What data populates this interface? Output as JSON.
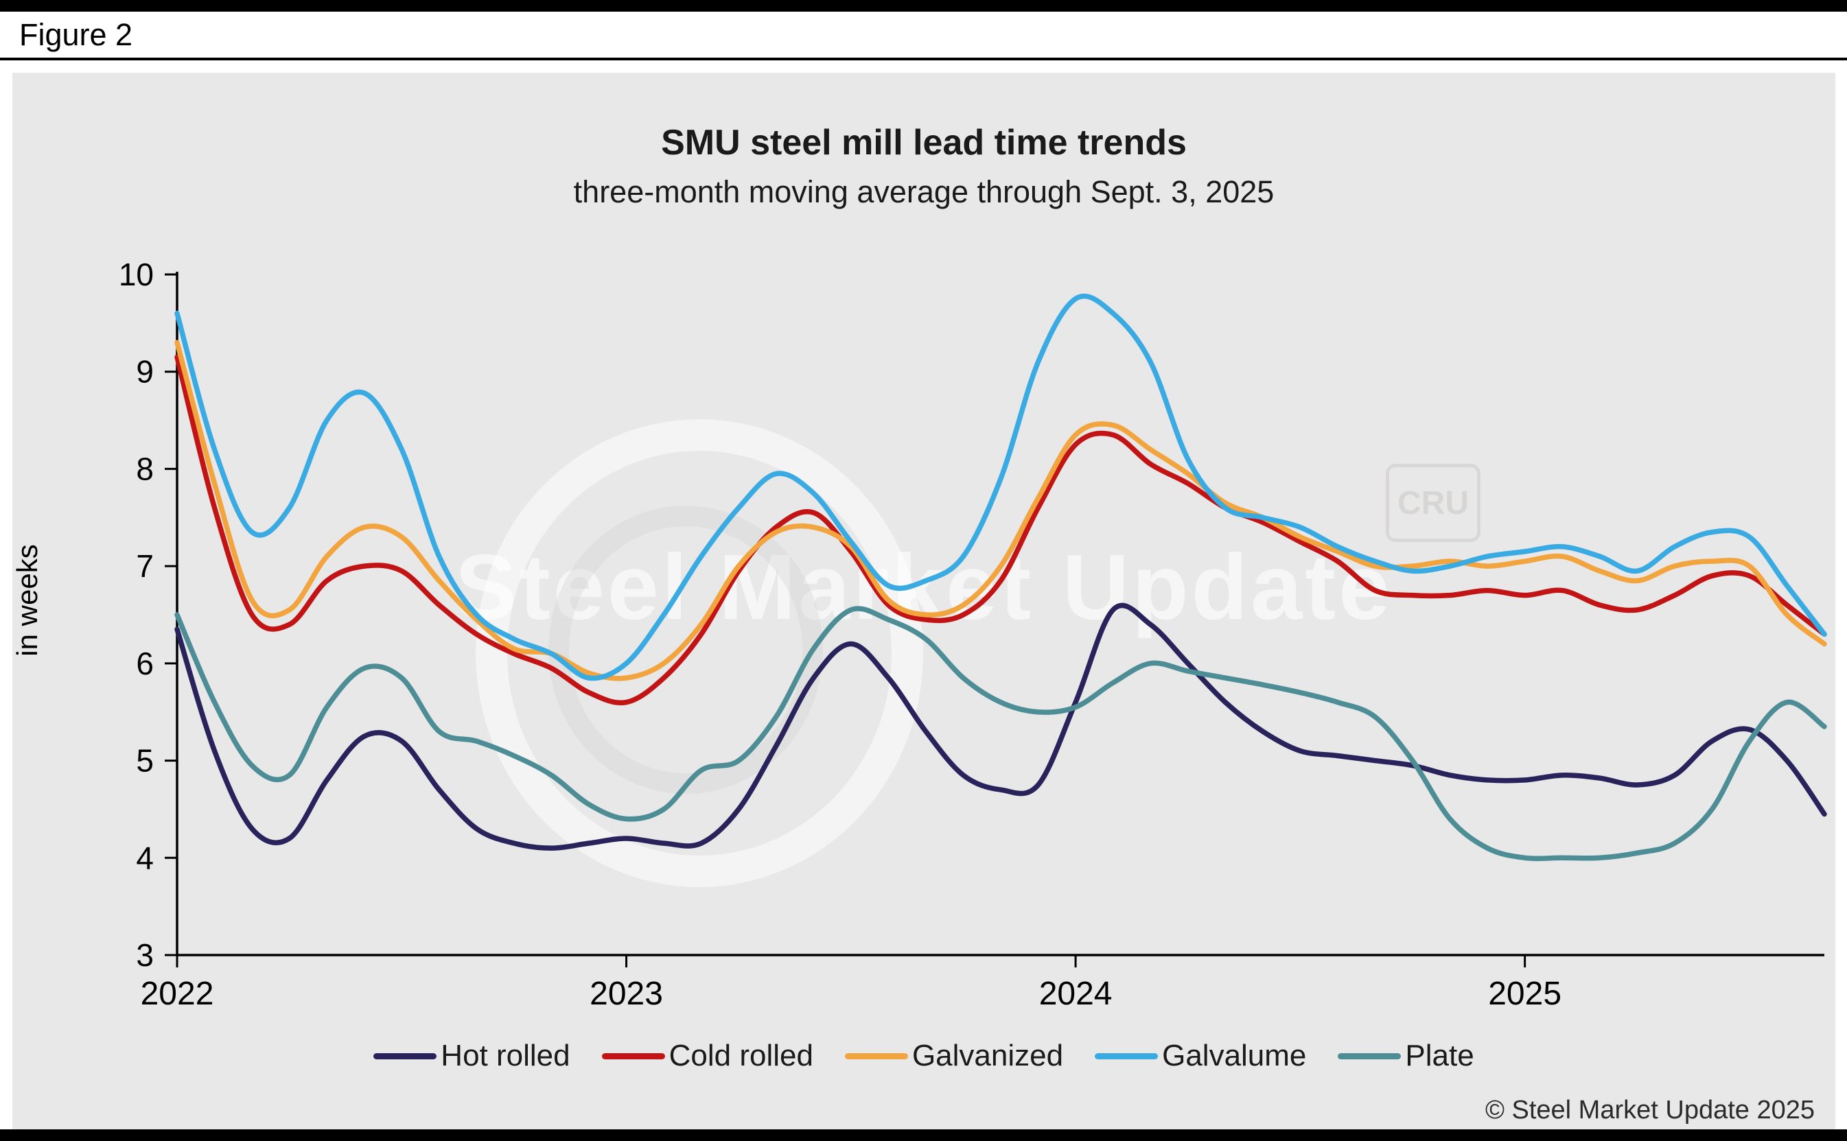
{
  "figure_label": "Figure 2",
  "chart_data": {
    "type": "line",
    "title": "SMU steel mill lead time trends",
    "subtitle": "three-month moving average through Sept. 3, 2025",
    "ylabel": "in weeks",
    "ylim": [
      3,
      10
    ],
    "yticks": [
      3,
      4,
      5,
      6,
      7,
      8,
      9,
      10
    ],
    "x_unit": "months since Jan 2022",
    "xtick_positions": [
      0,
      12,
      24,
      36
    ],
    "xtick_labels": [
      "2022",
      "2023",
      "2024",
      "2025"
    ],
    "legend_position": "bottom",
    "grid": false,
    "series": [
      {
        "name": "Hot rolled",
        "color": "#29235c",
        "z": 1,
        "values": [
          6.35,
          5.1,
          4.3,
          4.2,
          4.8,
          5.25,
          5.2,
          4.7,
          4.3,
          4.15,
          4.1,
          4.15,
          4.2,
          4.15,
          4.15,
          4.5,
          5.15,
          5.85,
          6.2,
          5.85,
          5.3,
          4.85,
          4.7,
          4.75,
          5.6,
          6.55,
          6.4,
          6.0,
          5.6,
          5.3,
          5.1,
          5.05,
          5.0,
          4.95,
          4.85,
          4.8,
          4.8,
          4.85,
          4.82,
          4.75,
          4.85,
          5.2,
          5.32,
          5.0,
          4.45
        ]
      },
      {
        "name": "Cold rolled",
        "color": "#c21414",
        "z": 3,
        "values": [
          9.15,
          7.6,
          6.5,
          6.4,
          6.85,
          7.0,
          6.95,
          6.6,
          6.3,
          6.1,
          5.95,
          5.7,
          5.6,
          5.85,
          6.3,
          6.95,
          7.4,
          7.55,
          7.15,
          6.6,
          6.45,
          6.5,
          6.85,
          7.6,
          8.25,
          8.35,
          8.05,
          7.85,
          7.6,
          7.45,
          7.25,
          7.05,
          6.75,
          6.7,
          6.7,
          6.75,
          6.7,
          6.75,
          6.6,
          6.55,
          6.7,
          6.9,
          6.9,
          6.6,
          6.3
        ]
      },
      {
        "name": "Galvanized",
        "color": "#f2a43e",
        "z": 4,
        "values": [
          9.3,
          7.85,
          6.65,
          6.55,
          7.1,
          7.4,
          7.3,
          6.85,
          6.45,
          6.15,
          6.1,
          5.9,
          5.85,
          6.0,
          6.4,
          7.0,
          7.35,
          7.4,
          7.2,
          6.65,
          6.5,
          6.6,
          7.0,
          7.7,
          8.35,
          8.45,
          8.2,
          7.95,
          7.65,
          7.5,
          7.3,
          7.15,
          7.0,
          7.0,
          7.05,
          7.0,
          7.05,
          7.1,
          6.95,
          6.85,
          7.0,
          7.05,
          7.0,
          6.5,
          6.2
        ]
      },
      {
        "name": "Galvalume",
        "color": "#3aabe2",
        "z": 5,
        "values": [
          9.6,
          8.2,
          7.35,
          7.6,
          8.5,
          8.78,
          8.2,
          7.1,
          6.5,
          6.25,
          6.1,
          5.85,
          6.0,
          6.5,
          7.1,
          7.6,
          7.95,
          7.75,
          7.25,
          6.8,
          6.85,
          7.1,
          7.9,
          9.1,
          9.75,
          9.6,
          9.1,
          8.1,
          7.6,
          7.5,
          7.4,
          7.2,
          7.05,
          6.95,
          7.0,
          7.1,
          7.15,
          7.2,
          7.1,
          6.95,
          7.2,
          7.35,
          7.3,
          6.8,
          6.3
        ]
      },
      {
        "name": "Plate",
        "color": "#4d8d95",
        "z": 2,
        "values": [
          6.5,
          5.6,
          4.95,
          4.85,
          5.55,
          5.95,
          5.85,
          5.3,
          5.2,
          5.05,
          4.85,
          4.55,
          4.4,
          4.5,
          4.9,
          5.0,
          5.45,
          6.15,
          6.55,
          6.45,
          6.25,
          5.85,
          5.6,
          5.5,
          5.55,
          5.8,
          6.0,
          5.92,
          5.85,
          5.78,
          5.7,
          5.6,
          5.45,
          5.0,
          4.4,
          4.1,
          4.0,
          4.0,
          4.0,
          4.05,
          4.15,
          4.5,
          5.2,
          5.6,
          5.35
        ]
      }
    ]
  },
  "watermark": {
    "brand": "Steel Market Update",
    "cru": "CRU"
  },
  "footer": {
    "copyright": "© Steel Market Update 2025"
  }
}
